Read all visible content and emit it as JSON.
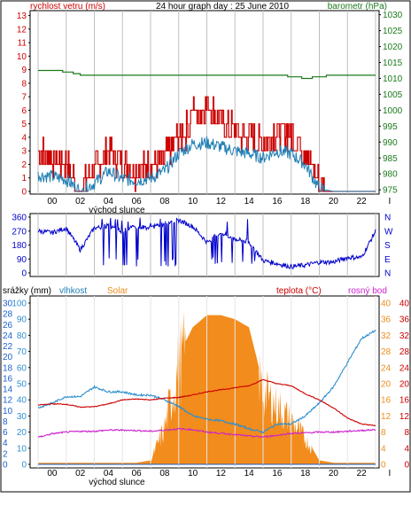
{
  "title": "24 hour graph day : 25 June 2010",
  "colors": {
    "wind": "#cc0000",
    "gust": "#cc0000",
    "wind_avg": "#1f7fb4",
    "pressure": "#1a7a1a",
    "direction": "#0000cc",
    "humidity": "#2f8fcf",
    "solar": "#f28c1c",
    "temperature": "#cc0000",
    "dewpoint": "#cc22cc",
    "rain": "#1a5fd0",
    "grid": "#bfbfbf",
    "axis": "#000000"
  },
  "x_ticks": [
    "00",
    "02",
    "04",
    "06",
    "08",
    "10",
    "12",
    "14",
    "16",
    "18",
    "20",
    "22",
    "I"
  ],
  "sunrise_label": "východ slunce",
  "chart_data": [
    {
      "type": "line",
      "title": "24 hour graph day : 25 June 2010",
      "left_label": "rychlost vetru (m/s)",
      "right_label": "barometr (hPa)",
      "left_ticks": [
        "0",
        "1",
        "2",
        "3",
        "4",
        "5",
        "6",
        "7",
        "8",
        "9",
        "10",
        "11",
        "12",
        "13"
      ],
      "right_ticks": [
        "975",
        "980",
        "985",
        "990",
        "995",
        "1000",
        "1005",
        "1010",
        "1015",
        "1020",
        "1025",
        "1030"
      ],
      "ylim_left": [
        0,
        13.3
      ],
      "ylim_right": [
        974.5,
        1031
      ],
      "x": [
        0,
        1,
        2,
        3,
        4,
        5,
        6,
        7,
        8,
        9,
        10,
        11,
        12,
        13,
        14,
        15,
        16,
        17,
        18,
        19,
        20,
        21,
        22,
        23,
        24
      ],
      "series": [
        {
          "name": "gust",
          "values": [
            2.8,
            2.5,
            2,
            0,
            1.5,
            3,
            2,
            1.5,
            2,
            2.5,
            4,
            5,
            6.5,
            5.2,
            4.5,
            4,
            3.5,
            4.5,
            4.2,
            3,
            0.5,
            0,
            0,
            0,
            0
          ]
        },
        {
          "name": "wind",
          "values": [
            1.2,
            1.1,
            0.9,
            0,
            0.6,
            1.5,
            0.9,
            0.8,
            1,
            1.5,
            2.8,
            3.5,
            3.6,
            3.3,
            3,
            2.8,
            2.5,
            3,
            2.8,
            2,
            0.2,
            0,
            0,
            0,
            0
          ]
        },
        {
          "name": "pressure",
          "values": [
            1012.5,
            1012.5,
            1012,
            1011,
            1011,
            1011,
            1011,
            1011,
            1011,
            1011,
            1011,
            1011,
            1011,
            1011,
            1011,
            1011,
            1011,
            1011,
            1010.5,
            1010,
            1010.5,
            1011,
            1011,
            1011,
            1011
          ]
        }
      ]
    },
    {
      "type": "line",
      "left_ticks": [
        "0",
        "90",
        "180",
        "270",
        "360"
      ],
      "right_ticks": [
        "N",
        "W",
        "S",
        "E",
        "N"
      ],
      "ylim": [
        0,
        360
      ],
      "x": [
        0,
        1,
        2,
        3,
        4,
        5,
        6,
        7,
        8,
        9,
        10,
        11,
        12,
        13,
        14,
        15,
        16,
        17,
        18,
        19,
        20,
        21,
        22,
        23,
        24
      ],
      "series": [
        {
          "name": "direction",
          "values": [
            270,
            260,
            290,
            150,
            290,
            300,
            270,
            300,
            290,
            320,
            340,
            300,
            200,
            260,
            220,
            200,
            80,
            60,
            40,
            50,
            70,
            70,
            100,
            100,
            270
          ]
        }
      ]
    },
    {
      "type": "line",
      "left_label_rain": "srážky (mm)",
      "left_label_hum": "vlhkost",
      "solar_label": "Solar",
      "temp_label": "teplota (°C)",
      "dew_label": "rosný bod",
      "rain_ticks": [
        "0",
        "2",
        "4",
        "6",
        "8",
        "10",
        "12",
        "14",
        "16",
        "18",
        "20",
        "22",
        "24",
        "26",
        "28",
        "30"
      ],
      "hum_ticks": [
        "0",
        "10",
        "20",
        "30",
        "40",
        "50",
        "60",
        "70",
        "80",
        "90",
        "100"
      ],
      "solar_ticks": [
        "0",
        "4",
        "8",
        "12",
        "16",
        "20",
        "24",
        "28",
        "32",
        "36",
        "40"
      ],
      "temp_ticks": [
        "0",
        "4",
        "8",
        "12",
        "16",
        "20",
        "24",
        "28",
        "32",
        "36",
        "40"
      ],
      "ylim_left": [
        0,
        100
      ],
      "ylim_right": [
        0,
        40
      ],
      "x": [
        0,
        1,
        2,
        3,
        4,
        5,
        6,
        7,
        8,
        9,
        10,
        11,
        12,
        13,
        14,
        15,
        16,
        17,
        18,
        19,
        20,
        21,
        22,
        23,
        24
      ],
      "series": [
        {
          "name": "humidity",
          "values": [
            35,
            38,
            42,
            42,
            48,
            45,
            45,
            43,
            43,
            40,
            36,
            30,
            28,
            27,
            25,
            22,
            20,
            25,
            25,
            30,
            38,
            48,
            63,
            78,
            83
          ]
        },
        {
          "name": "temperature",
          "values": [
            14.7,
            15,
            14.9,
            14.2,
            14.3,
            15,
            16,
            16.2,
            16,
            16.4,
            16.6,
            17.2,
            18,
            18.5,
            19,
            19.5,
            21,
            20,
            19.5,
            17.5,
            16,
            14,
            11.5,
            10,
            9.6
          ]
        },
        {
          "name": "dewpoint",
          "values": [
            6.7,
            7.6,
            8,
            8.2,
            8.2,
            8.5,
            8.5,
            8.4,
            8.2,
            8.5,
            8.8,
            8.6,
            8,
            7.7,
            7.4,
            7,
            6.8,
            7.2,
            7.7,
            7.8,
            8,
            8,
            8.2,
            8.4,
            8.6
          ]
        },
        {
          "name": "solar",
          "values": [
            0.4,
            0.4,
            0.4,
            0.4,
            0.4,
            0.4,
            0.4,
            0.4,
            1,
            10,
            27,
            34,
            37,
            37,
            36,
            34,
            20,
            16,
            12,
            7,
            1,
            0.4,
            0.4,
            0.4,
            0.4
          ]
        },
        {
          "name": "rain",
          "values": [
            0,
            0,
            0,
            0,
            0,
            0,
            0,
            0,
            0,
            0,
            0,
            0,
            0,
            0,
            0,
            0,
            0,
            0,
            0,
            0,
            0,
            0,
            0,
            0,
            0
          ]
        }
      ]
    }
  ]
}
